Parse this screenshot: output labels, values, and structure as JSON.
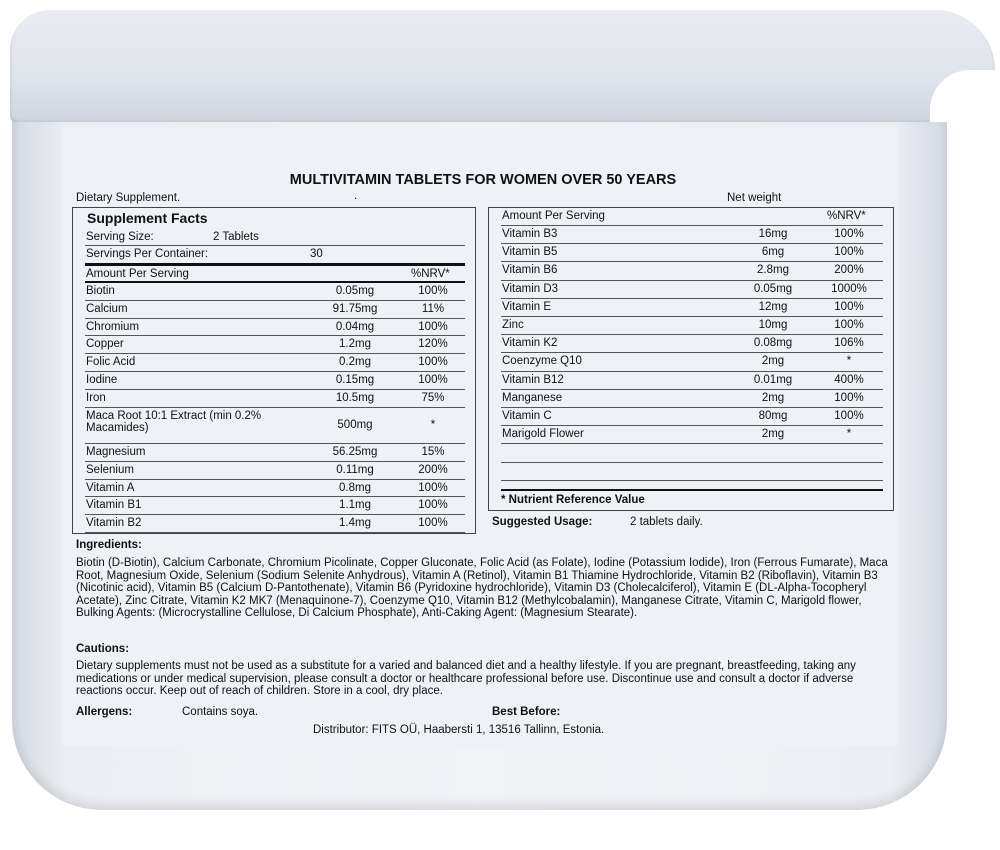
{
  "title": "MULTIVITAMIN TABLETS FOR WOMEN OVER 50 YEARS",
  "dietary": "Dietary Supplement.",
  "dot": ".",
  "net_weight": "Net weight",
  "left": {
    "heading": "Supplement Facts",
    "serving_size_label": "Serving Size:",
    "serving_size": "2 Tablets",
    "servings_label": "Servings Per Container:",
    "servings": "30",
    "amount_header": "Amount Per Serving",
    "nrv_header": "%NRV*",
    "rows": [
      {
        "name": "Biotin",
        "amount": "0.05mg",
        "nrv": "100%"
      },
      {
        "name": "Calcium",
        "amount": "91.75mg",
        "nrv": "11%"
      },
      {
        "name": "Chromium",
        "amount": "0.04mg",
        "nrv": "100%"
      },
      {
        "name": "Copper",
        "amount": "1.2mg",
        "nrv": "120%"
      },
      {
        "name": "Folic Acid",
        "amount": "0.2mg",
        "nrv": "100%"
      },
      {
        "name": "Iodine",
        "amount": "0.15mg",
        "nrv": "100%"
      },
      {
        "name": "Iron",
        "amount": "10.5mg",
        "nrv": "75%"
      },
      {
        "name": "Maca Root 10:1 Extract (min 0.2% Macamides)",
        "amount": "500mg",
        "nrv": "*"
      },
      {
        "name": "Magnesium",
        "amount": "56.25mg",
        "nrv": "15%"
      },
      {
        "name": "Selenium",
        "amount": "0.11mg",
        "nrv": "200%"
      },
      {
        "name": "Vitamin A",
        "amount": "0.8mg",
        "nrv": "100%"
      },
      {
        "name": "Vitamin B1",
        "amount": "1.1mg",
        "nrv": "100%"
      },
      {
        "name": "Vitamin B2",
        "amount": "1.4mg",
        "nrv": "100%"
      }
    ]
  },
  "right": {
    "amount_header": "Amount Per Serving",
    "nrv_header": "%NRV*",
    "rows": [
      {
        "name": "Vitamin B3",
        "amount": "16mg",
        "nrv": "100%"
      },
      {
        "name": "Vitamin B5",
        "amount": "6mg",
        "nrv": "100%"
      },
      {
        "name": "Vitamin B6",
        "amount": "2.8mg",
        "nrv": "200%"
      },
      {
        "name": "Vitamin D3",
        "amount": "0.05mg",
        "nrv": "1000%"
      },
      {
        "name": "Vitamin E",
        "amount": "12mg",
        "nrv": "100%"
      },
      {
        "name": "Zinc",
        "amount": "10mg",
        "nrv": "100%"
      },
      {
        "name": "Vitamin K2",
        "amount": "0.08mg",
        "nrv": "106%"
      },
      {
        "name": "Coenzyme Q10",
        "amount": "2mg",
        "nrv": "*"
      },
      {
        "name": "Vitamin B12",
        "amount": "0.01mg",
        "nrv": "400%"
      },
      {
        "name": "Manganese",
        "amount": "2mg",
        "nrv": "100%"
      },
      {
        "name": "Vitamin C",
        "amount": "80mg",
        "nrv": "100%"
      },
      {
        "name": "Marigold Flower",
        "amount": "2mg",
        "nrv": "*"
      }
    ],
    "footnote": "* Nutrient Reference Value"
  },
  "usage_label": "Suggested Usage:",
  "usage": "2 tablets daily.",
  "ingredients_label": "Ingredients:",
  "ingredients": "Biotin (D-Biotin), Calcium Carbonate, Chromium Picolinate, Copper Gluconate, Folic Acid (as Folate), Iodine (Potassium Iodide), Iron (Ferrous Fumarate), Maca Root, Magnesium Oxide, Selenium (Sodium Selenite Anhydrous), Vitamin A (Retinol), Vitamin B1 Thiamine Hydrochloride, Vitamin B2 (Riboflavin), Vitamin B3 (Nicotinic acid), Vitamin B5 (Calcium D-Pantothenate), Vitamin B6 (Pyridoxine hydrochloride), Vitamin D3 (Cholecalciferol), Vitamin E (DL-Alpha-Tocopheryl Acetate), Zinc Citrate, Vitamin K2 MK7 (Menaquinone-7), Coenzyme Q10, Vitamin B12 (Methylcobalamin), Manganese Citrate, Vitamin C, Marigold flower, Bulking Agents: (Microcrystalline Cellulose, Di Calcium Phosphate), Anti-Caking Agent: (Magnesium Stearate).",
  "cautions_label": "Cautions:",
  "cautions": "Dietary supplements must not be used as a substitute for a varied and balanced diet and a healthy lifestyle. If you are pregnant, breastfeeding, taking any medications or under medical supervision, please consult a doctor or healthcare professional before use. Discontinue use and consult a doctor if adverse reactions occur. Keep out of reach of children. Store in a cool, dry place.",
  "allergens_label": "Allergens:",
  "allergens": "Contains soya.",
  "best_before_label": "Best Before:",
  "distributor": "Distributor: FITS OÜ, Haabersti 1, 13516 Tallinn, Estonia."
}
